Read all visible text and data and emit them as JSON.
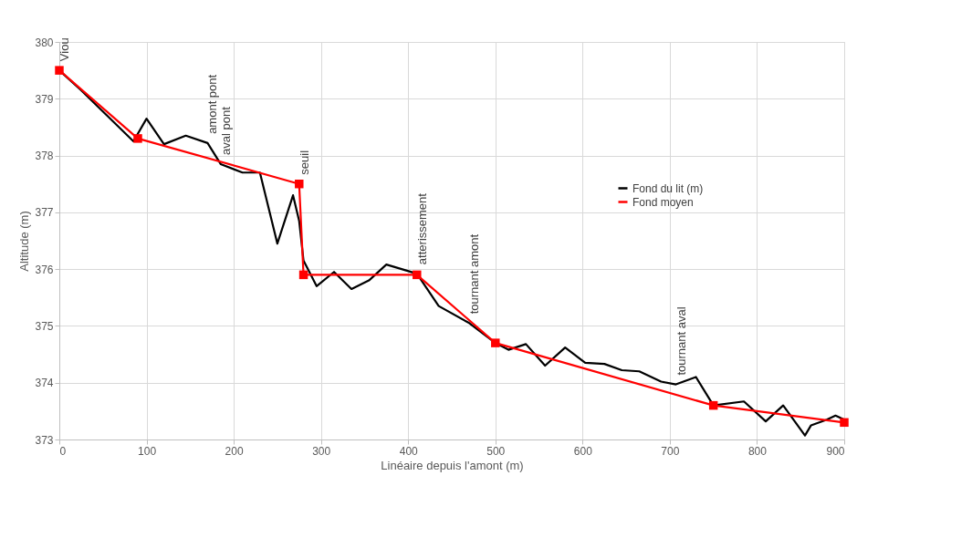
{
  "chart_data": {
    "type": "line",
    "xlabel": "Linéaire depuis l'amont (m)",
    "ylabel": "Altitude (m)",
    "xlim": [
      0,
      900
    ],
    "xticks": [
      0,
      100,
      200,
      300,
      400,
      500,
      600,
      700,
      800,
      900
    ],
    "ylim": [
      373,
      380
    ],
    "yticks": [
      373,
      374,
      375,
      376,
      377,
      378,
      379,
      380
    ],
    "grid": true,
    "legend": "top right",
    "series": [
      {
        "name": "Fond du lit (m)",
        "color": "#000000",
        "marker": "none",
        "x": [
          0,
          25,
          85,
          100,
          120,
          145,
          170,
          185,
          210,
          230,
          250,
          268,
          275,
          280,
          295,
          315,
          335,
          355,
          375,
          410,
          435,
          470,
          500,
          515,
          535,
          557,
          580,
          603,
          625,
          645,
          665,
          690,
          707,
          730,
          750,
          785,
          810,
          830,
          855,
          862,
          880,
          890,
          900
        ],
        "values": [
          379.5,
          379.15,
          378.25,
          378.65,
          378.2,
          378.35,
          378.22,
          377.85,
          377.7,
          377.7,
          376.45,
          377.3,
          376.85,
          376.15,
          375.7,
          375.95,
          375.65,
          375.8,
          376.08,
          375.92,
          375.35,
          375.05,
          374.7,
          374.58,
          374.68,
          374.3,
          374.62,
          374.35,
          374.33,
          374.22,
          374.2,
          374.02,
          373.97,
          374.1,
          373.6,
          373.67,
          373.32,
          373.6,
          373.07,
          373.25,
          373.35,
          373.42,
          373.35
        ]
      },
      {
        "name": "Fond moyen",
        "color": "#ff0000",
        "marker": "square",
        "x": [
          0,
          90,
          275,
          280,
          410,
          500,
          750,
          900
        ],
        "values": [
          379.5,
          378.3,
          377.5,
          375.9,
          375.9,
          374.7,
          373.6,
          373.3
        ]
      }
    ],
    "annotations": [
      {
        "text": "Viou",
        "x": 0,
        "y": 379.5
      },
      {
        "text": "amont pont",
        "x": 170,
        "y": 378.22
      },
      {
        "text": "aval pont",
        "x": 185,
        "y": 377.85
      },
      {
        "text": "seuil",
        "x": 275,
        "y": 377.5
      },
      {
        "text": "atterissement",
        "x": 410,
        "y": 375.92
      },
      {
        "text": "tournant amont",
        "x": 470,
        "y": 375.05
      },
      {
        "text": "tournant aval",
        "x": 707,
        "y": 373.97
      }
    ]
  }
}
